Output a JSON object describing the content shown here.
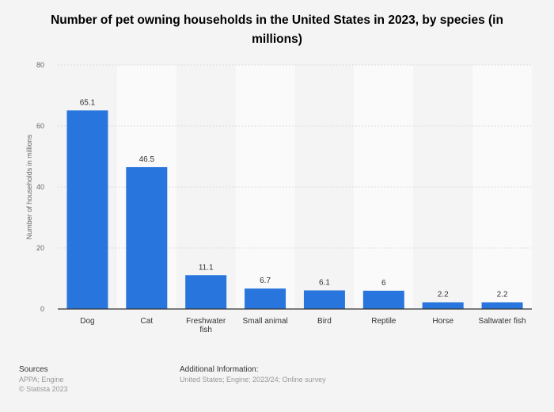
{
  "chart_data": {
    "type": "bar",
    "title": "Number of pet owning households in the United States in 2023, by species (in millions)",
    "xlabel": "",
    "ylabel": "Number of households in millions",
    "categories": [
      "Dog",
      "Cat",
      "Freshwater fish",
      "Small animal",
      "Bird",
      "Reptile",
      "Horse",
      "Saltwater fish"
    ],
    "values": [
      65.1,
      46.5,
      11.1,
      6.7,
      6.1,
      6,
      2.2,
      2.2
    ],
    "value_labels": [
      "65.1",
      "46.5",
      "11.1",
      "6.7",
      "6.1",
      "6",
      "2.2",
      "2.2"
    ],
    "ylim": [
      0,
      80
    ],
    "yticks": [
      0,
      20,
      40,
      60,
      80
    ],
    "grid": true,
    "bar_color": "#2876dd"
  },
  "footer": {
    "sources_label": "Sources",
    "sources": "APPA; Engine",
    "copyright": "© Statista 2023",
    "additional_label": "Additional Information:",
    "additional": "United States; Engine; 2023/24; Online survey"
  }
}
